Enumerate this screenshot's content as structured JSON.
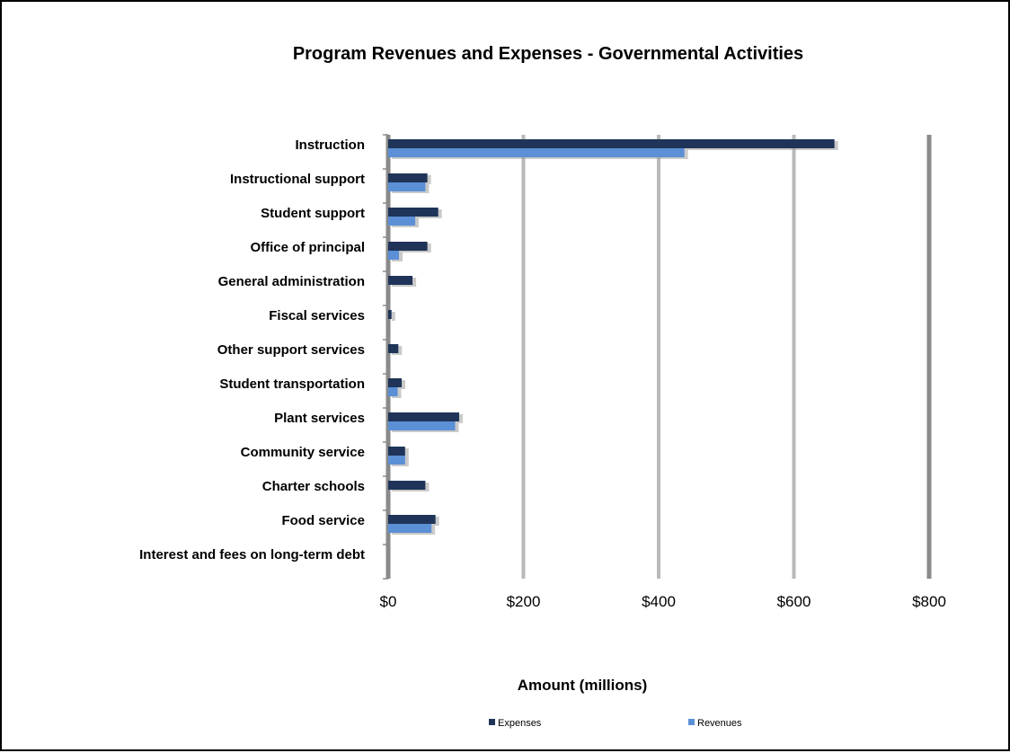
{
  "chart_data": {
    "type": "bar",
    "orientation": "horizontal",
    "title": "Program Revenues and Expenses - Governmental Activities",
    "xlabel": "Amount (millions)",
    "ylabel": "",
    "xlim": [
      0,
      800
    ],
    "x_ticks": [
      0,
      200,
      400,
      600,
      800
    ],
    "x_tick_labels": [
      "$0",
      "$200",
      "$400",
      "$600",
      "$800"
    ],
    "grid": true,
    "legend_position": "bottom",
    "categories": [
      "Instruction",
      "Instructional support",
      "Student support",
      "Office of principal",
      "General administration",
      "Fiscal services",
      "Other support services",
      "Student transportation",
      "Plant services",
      "Community service",
      "Charter schools",
      "Food service",
      "Interest and fees on long-term debt"
    ],
    "series": [
      {
        "name": "Expenses",
        "color": "#1f3458",
        "values": [
          660,
          58,
          74,
          58,
          36,
          5,
          15,
          20,
          105,
          25,
          55,
          70,
          0
        ]
      },
      {
        "name": "Revenues",
        "color": "#5b8fd6",
        "values": [
          438,
          55,
          40,
          16,
          0,
          0,
          0,
          14,
          99,
          25,
          0,
          64,
          0
        ]
      }
    ]
  }
}
